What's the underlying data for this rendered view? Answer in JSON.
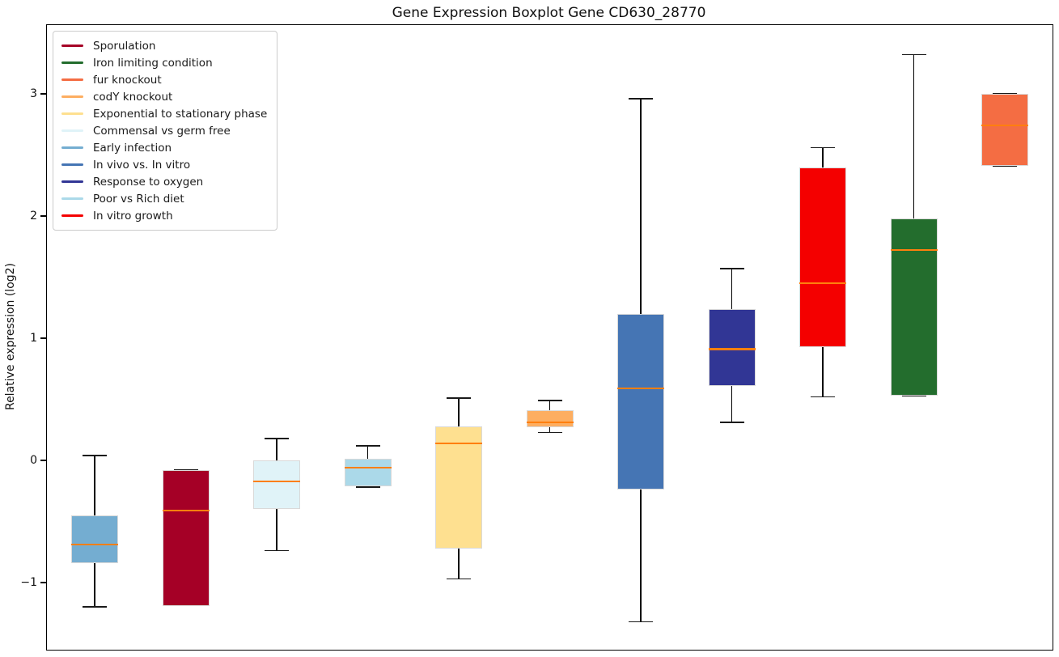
{
  "title": "Gene Expression Boxplot Gene CD630_28770",
  "chart_data": {
    "type": "boxplot",
    "title": "Gene Expression Boxplot Gene CD630_28770",
    "xlabel": "",
    "ylabel": "Relative expression (log2)",
    "ylim": [
      -1.55,
      3.56
    ],
    "yticks": [
      3,
      2,
      1,
      0,
      -1
    ],
    "grid": false,
    "legend_position": "upper-left",
    "median_color": "#ff7f0e",
    "box_edge_color": "#d9d9d9",
    "legend": [
      {
        "label": "Sporulation",
        "color": "#a50026"
      },
      {
        "label": "Iron limiting condition",
        "color": "#236d2d"
      },
      {
        "label": "fur knockout",
        "color": "#f46d43"
      },
      {
        "label": "codY knockout",
        "color": "#fdae61"
      },
      {
        "label": "Exponential to stationary phase",
        "color": "#fee090"
      },
      {
        "label": "Commensal vs germ free",
        "color": "#e0f3f8"
      },
      {
        "label": "Early infection",
        "color": "#74add1"
      },
      {
        "label": "In vivo vs. In vitro",
        "color": "#4575b4"
      },
      {
        "label": "Response to oxygen",
        "color": "#313695"
      },
      {
        "label": "Poor vs Rich diet",
        "color": "#abd9e9"
      },
      {
        "label": "In vitro growth",
        "color": "#f40000"
      }
    ],
    "boxes": [
      {
        "label": "Early infection",
        "color": "#74add1",
        "whislo": -1.2,
        "q1": -0.84,
        "med": -0.69,
        "q3": -0.45,
        "whishi": 0.04
      },
      {
        "label": "Sporulation",
        "color": "#a50026",
        "whislo": -1.19,
        "q1": -1.19,
        "med": -0.41,
        "q3": -0.08,
        "whishi": -0.08
      },
      {
        "label": "Commensal vs germ free",
        "color": "#e0f3f8",
        "whislo": -0.74,
        "q1": -0.4,
        "med": -0.17,
        "q3": 0.0,
        "whishi": 0.18
      },
      {
        "label": "Poor vs Rich diet",
        "color": "#abd9e9",
        "whislo": -0.22,
        "q1": -0.21,
        "med": -0.06,
        "q3": 0.01,
        "whishi": 0.12
      },
      {
        "label": "Exponential to stationary phase",
        "color": "#fee090",
        "whislo": -0.97,
        "q1": -0.72,
        "med": 0.14,
        "q3": 0.28,
        "whishi": 0.51
      },
      {
        "label": "codY knockout",
        "color": "#fdae61",
        "whislo": 0.23,
        "q1": 0.27,
        "med": 0.31,
        "q3": 0.41,
        "whishi": 0.49
      },
      {
        "label": "In vivo vs. In vitro",
        "color": "#4575b4",
        "whislo": -1.32,
        "q1": -0.24,
        "med": 0.59,
        "q3": 1.2,
        "whishi": 2.96
      },
      {
        "label": "Response to oxygen",
        "color": "#313695",
        "whislo": 0.31,
        "q1": 0.61,
        "med": 0.91,
        "q3": 1.24,
        "whishi": 1.57
      },
      {
        "label": "In vitro growth",
        "color": "#f40000",
        "whislo": 0.52,
        "q1": 0.93,
        "med": 1.45,
        "q3": 2.4,
        "whishi": 2.56
      },
      {
        "label": "Iron limiting condition",
        "color": "#236d2d",
        "whislo": 0.53,
        "q1": 0.53,
        "med": 1.72,
        "q3": 1.98,
        "whishi": 3.32
      },
      {
        "label": "fur knockout",
        "color": "#f46d43",
        "whislo": 2.41,
        "q1": 2.41,
        "med": 2.74,
        "q3": 3.0,
        "whishi": 3.0
      }
    ]
  }
}
